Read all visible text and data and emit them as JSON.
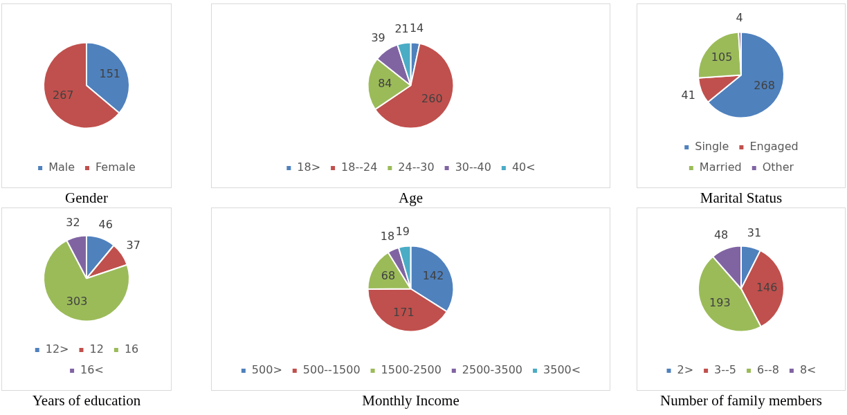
{
  "chart_data": [
    {
      "type": "pie",
      "title": "Gender",
      "categories": [
        "Male",
        "Female"
      ],
      "values": [
        151,
        267
      ],
      "colors": [
        "#4f81bd",
        "#c0504d"
      ],
      "legend": "bottom",
      "data_labels": true
    },
    {
      "type": "pie",
      "title": "Age",
      "categories": [
        "18>",
        "18--24",
        "24--30",
        "30--40",
        "40<"
      ],
      "values": [
        14,
        260,
        84,
        39,
        21
      ],
      "colors": [
        "#4f81bd",
        "#c0504d",
        "#9bbb59",
        "#8064a2",
        "#4bacc6"
      ],
      "legend": "bottom",
      "data_labels": true
    },
    {
      "type": "pie",
      "title": "Marital Status",
      "categories": [
        "Single",
        "Engaged",
        "Married",
        "Other"
      ],
      "values": [
        268,
        41,
        105,
        4
      ],
      "colors": [
        "#4f81bd",
        "#c0504d",
        "#9bbb59",
        "#8064a2"
      ],
      "legend": "bottom",
      "data_labels": true
    },
    {
      "type": "pie",
      "title": "Years of education",
      "categories": [
        "12>",
        "12",
        "16",
        "16<"
      ],
      "values": [
        46,
        37,
        303,
        32
      ],
      "colors": [
        "#4f81bd",
        "#c0504d",
        "#9bbb59",
        "#8064a2"
      ],
      "legend": "bottom",
      "data_labels": true
    },
    {
      "type": "pie",
      "title": "Monthly Income",
      "categories": [
        "500>",
        "500--1500",
        "1500-2500",
        "2500-3500",
        "3500<"
      ],
      "values": [
        142,
        171,
        68,
        18,
        19
      ],
      "colors": [
        "#4f81bd",
        "#c0504d",
        "#9bbb59",
        "#8064a2",
        "#4bacc6"
      ],
      "legend": "bottom",
      "data_labels": true
    },
    {
      "type": "pie",
      "title": "Number of family members",
      "categories": [
        "2>",
        "3--5",
        "6--8",
        "8<"
      ],
      "values": [
        31,
        146,
        193,
        48
      ],
      "colors": [
        "#4f81bd",
        "#c0504d",
        "#9bbb59",
        "#8064a2"
      ],
      "legend": "bottom",
      "data_labels": true
    }
  ]
}
